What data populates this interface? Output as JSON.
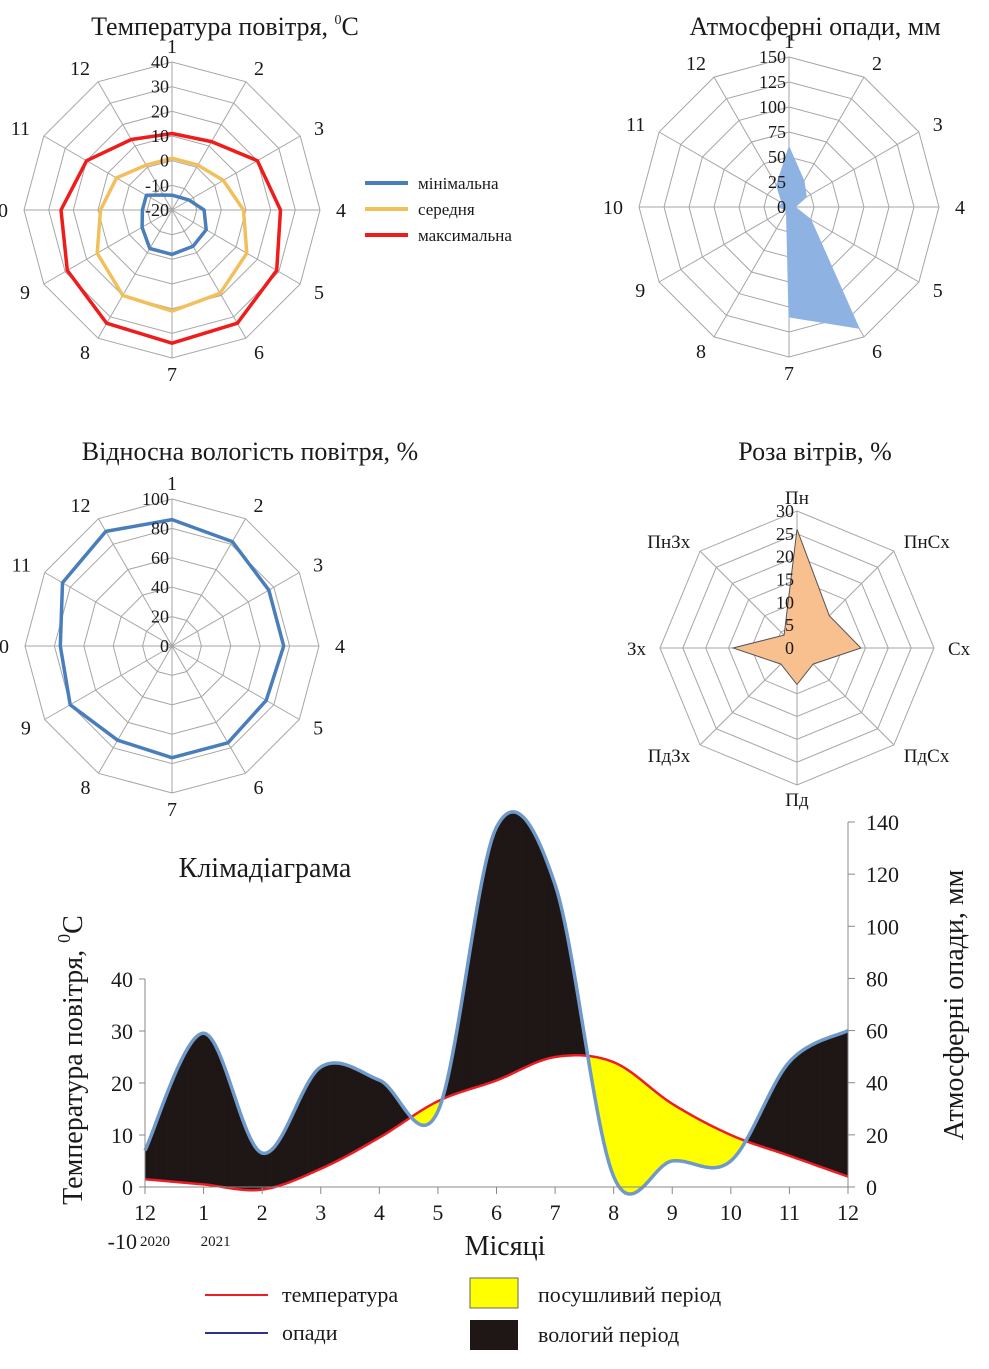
{
  "colors": {
    "grid": "#a6a6a6",
    "min": "#4a7ebb",
    "mean": "#f2c05a",
    "max": "#ef1c1c",
    "precip_fill": "#8eb3e3",
    "humidity": "#4a7ebb",
    "wind_fill": "#f8bf8f",
    "wind_stroke": "#555555",
    "temp_line": "#ee1c24",
    "precip_line": "#6f99c9",
    "legend_precip": "#2e3192",
    "wet": "#1e1716",
    "dry": "#ffff00"
  },
  "chart_data": [
    {
      "type": "radar",
      "title": "Температура повітря, ",
      "title_sup": "0",
      "title_unit": "С",
      "axes": [
        "1",
        "2",
        "3",
        "4",
        "5",
        "6",
        "7",
        "8",
        "9",
        "10",
        "11",
        "12"
      ],
      "scale": [
        -20,
        40
      ],
      "ticks": [
        "-20",
        "-10",
        "0",
        "10",
        "20",
        "30",
        "40"
      ],
      "series": [
        {
          "name": "мінімальна",
          "color_key": "min",
          "values": [
            -14,
            -14,
            -12,
            -7,
            -4,
            -3,
            -2,
            -2,
            -6,
            -8,
            -8,
            -13
          ]
        },
        {
          "name": "середня",
          "color_key": "mean",
          "values": [
            1,
            1,
            4,
            9,
            15,
            19,
            21,
            20,
            15,
            9,
            6,
            1
          ]
        },
        {
          "name": "максимальна",
          "color_key": "max",
          "values": [
            11,
            12,
            20,
            24,
            29,
            33,
            34,
            33,
            29,
            25,
            20,
            13
          ]
        }
      ]
    },
    {
      "type": "radar",
      "title": "Атмосферні опади, мм",
      "axes": [
        "1",
        "2",
        "3",
        "4",
        "5",
        "6",
        "7",
        "8",
        "9",
        "10",
        "11",
        "12"
      ],
      "scale": [
        0,
        150
      ],
      "ticks": [
        "0",
        "25",
        "50",
        "75",
        "100",
        "125",
        "150"
      ],
      "series": [
        {
          "name": "",
          "values": [
            60,
            30,
            20,
            6,
            25,
            140,
            110,
            5,
            5,
            10,
            8,
            25
          ]
        }
      ]
    },
    {
      "type": "radar",
      "title": "Відносна вологість повітря, %",
      "axes": [
        "1",
        "2",
        "3",
        "4",
        "5",
        "6",
        "7",
        "8",
        "9",
        "10",
        "11",
        "12"
      ],
      "scale": [
        0,
        100
      ],
      "ticks": [
        "0",
        "20",
        "40",
        "60",
        "80",
        "100"
      ],
      "series": [
        {
          "name": "",
          "values": [
            86,
            82,
            76,
            76,
            74,
            76,
            76,
            74,
            80,
            76,
            86,
            90
          ]
        }
      ]
    },
    {
      "type": "radar",
      "title": "Роза вітрів, %",
      "axes": [
        "Пн",
        "ПнСх",
        "Сх",
        "ПдСх",
        "Пд",
        "ПдЗх",
        "Зх",
        "ПнЗх"
      ],
      "scale": [
        0,
        30
      ],
      "ticks": [
        "0",
        "5",
        "10",
        "15",
        "20",
        "25",
        "30"
      ],
      "series": [
        {
          "name": "",
          "values": [
            26,
            10,
            14,
            5,
            8,
            5,
            14,
            4
          ]
        }
      ]
    },
    {
      "type": "area",
      "title": "Клімадіаграма",
      "xlabel": "Місяці",
      "ylabel_left": "Температура повітря, ",
      "ylabel_left_sup": "0",
      "ylabel_left_unit": "С",
      "ylabel_right": "Атмосферні опади, мм",
      "x_ticks": [
        "12",
        "1",
        "2",
        "3",
        "4",
        "5",
        "6",
        "7",
        "8",
        "9",
        "10",
        "11",
        "12"
      ],
      "x_subticks": [
        {
          "at": 0,
          "label": "2020"
        },
        {
          "at": 1,
          "label": "2021"
        }
      ],
      "left_ticks": [
        -10,
        0,
        10,
        20,
        30,
        40
      ],
      "right_ticks": [
        0,
        20,
        40,
        60,
        80,
        100,
        120,
        140
      ],
      "left_range": [
        0,
        40
      ],
      "right_range": [
        0,
        140
      ],
      "temperature": [
        1.5,
        0.5,
        -0.5,
        3.5,
        9.5,
        16.5,
        20.5,
        25,
        24,
        16,
        10,
        6,
        2
      ],
      "precipitation": [
        14,
        59,
        13,
        46,
        41,
        29,
        138,
        116,
        4,
        10,
        10,
        48,
        60
      ],
      "legend": [
        {
          "label": "температура",
          "kind": "line",
          "color_key": "temp_line"
        },
        {
          "label": "опади",
          "kind": "line",
          "color_key": "legend_precip"
        },
        {
          "label": "посушливий період",
          "kind": "box",
          "color_key": "dry"
        },
        {
          "label": "вологий період",
          "kind": "box",
          "color_key": "wet"
        }
      ]
    }
  ]
}
